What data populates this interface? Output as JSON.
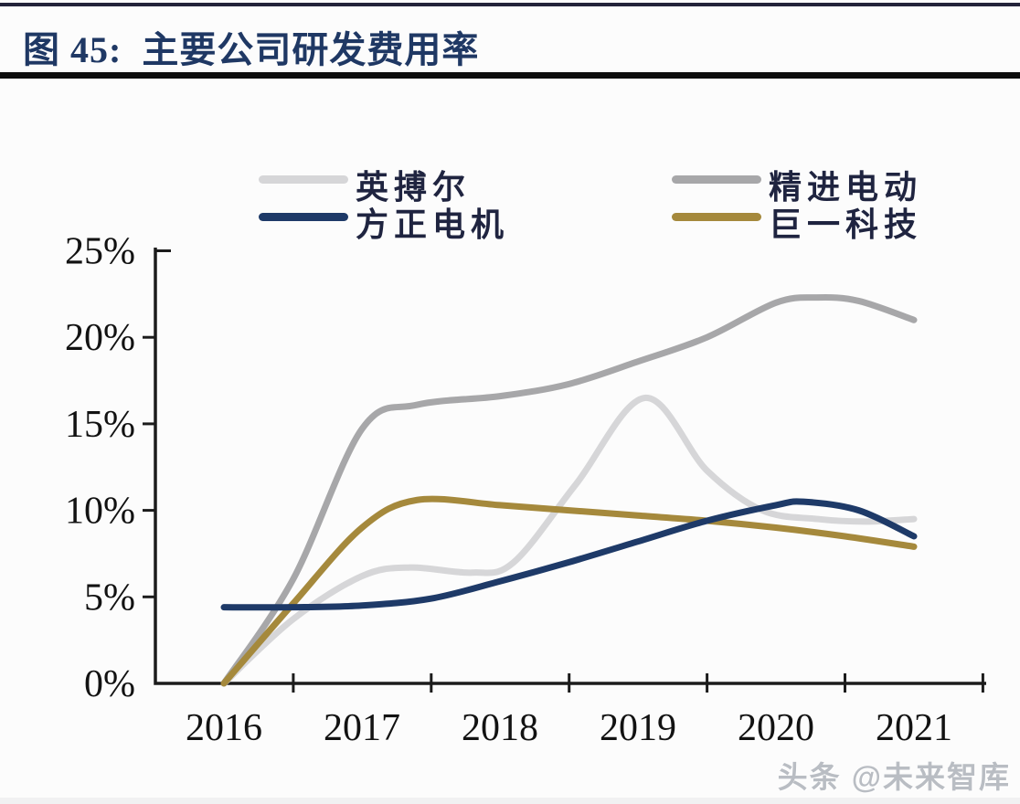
{
  "header": {
    "title": "图 45:  主要公司研发费用率"
  },
  "legend": {
    "items": [
      {
        "label": "英搏尔",
        "color": "#d6d6d8"
      },
      {
        "label": "精进电动",
        "color": "#a7a7a9"
      },
      {
        "label": "方正电机",
        "color": "#1e3a68"
      },
      {
        "label": "巨一科技",
        "color": "#a5893c"
      }
    ]
  },
  "watermark": {
    "text": "头条 @未来智库"
  },
  "chart_data": {
    "type": "line",
    "title": "主要公司研发费用率",
    "figure_label": "图 45",
    "grid": false,
    "legend_position": "top",
    "x_axis": {
      "tick_labels": [
        "2016",
        "2017",
        "2018",
        "2019",
        "2020",
        "2021"
      ],
      "range": [
        2016,
        2021
      ]
    },
    "y_axis": {
      "tick_labels": [
        "0%",
        "5%",
        "10%",
        "15%",
        "20%",
        "25%"
      ],
      "tick_values": [
        0,
        5,
        10,
        15,
        20,
        25
      ],
      "min": 0,
      "max": 25,
      "unit": "%"
    },
    "series": [
      {
        "name": "英搏尔",
        "color": "#d6d6d8",
        "x": [
          2016,
          2016.5,
          2017,
          2017.35,
          2017.8,
          2018.1,
          2018.55,
          2019.05,
          2019.5,
          2019.9,
          2020.3,
          2020.65,
          2021
        ],
        "values": [
          0,
          3.7,
          6.2,
          6.7,
          6.4,
          7.0,
          11.5,
          16.5,
          12.3,
          10.0,
          9.5,
          9.35,
          9.5
        ]
      },
      {
        "name": "精进电动",
        "color": "#a7a7a9",
        "x": [
          2016,
          2016.5,
          2017,
          2017.4,
          2018,
          2018.5,
          2019,
          2019.5,
          2020,
          2020.3,
          2020.6,
          2021
        ],
        "values": [
          0,
          6.0,
          14.7,
          16.1,
          16.6,
          17.3,
          18.6,
          20.0,
          22.0,
          22.3,
          22.1,
          21.0
        ]
      },
      {
        "name": "巨一科技",
        "color": "#a5893c",
        "x": [
          2016,
          2016.5,
          2017,
          2017.4,
          2018,
          2018.5,
          2019,
          2019.5,
          2020,
          2020.5,
          2021
        ],
        "values": [
          0,
          4.6,
          9.0,
          10.6,
          10.3,
          10.0,
          9.7,
          9.4,
          9.0,
          8.5,
          7.9
        ]
      },
      {
        "name": "方正电机",
        "color": "#1e3a68",
        "x": [
          2016,
          2016.5,
          2017,
          2017.5,
          2018,
          2018.5,
          2019,
          2019.5,
          2020,
          2020.2,
          2020.6,
          2021
        ],
        "values": [
          4.4,
          4.4,
          4.5,
          4.9,
          5.9,
          7.0,
          8.2,
          9.4,
          10.3,
          10.5,
          10.0,
          8.5
        ]
      }
    ],
    "annual_values": {
      "years": [
        2016,
        2017,
        2018,
        2019,
        2020,
        2021
      ],
      "英搏尔": [
        0,
        6.2,
        6.8,
        16.5,
        9.9,
        9.5
      ],
      "精进电动": [
        0,
        14.7,
        16.6,
        18.6,
        22.0,
        21.0
      ],
      "方正电机": [
        4.4,
        4.5,
        5.9,
        8.2,
        10.3,
        8.5
      ],
      "巨一科技": [
        0,
        9.0,
        10.3,
        9.7,
        9.0,
        7.9
      ]
    }
  }
}
